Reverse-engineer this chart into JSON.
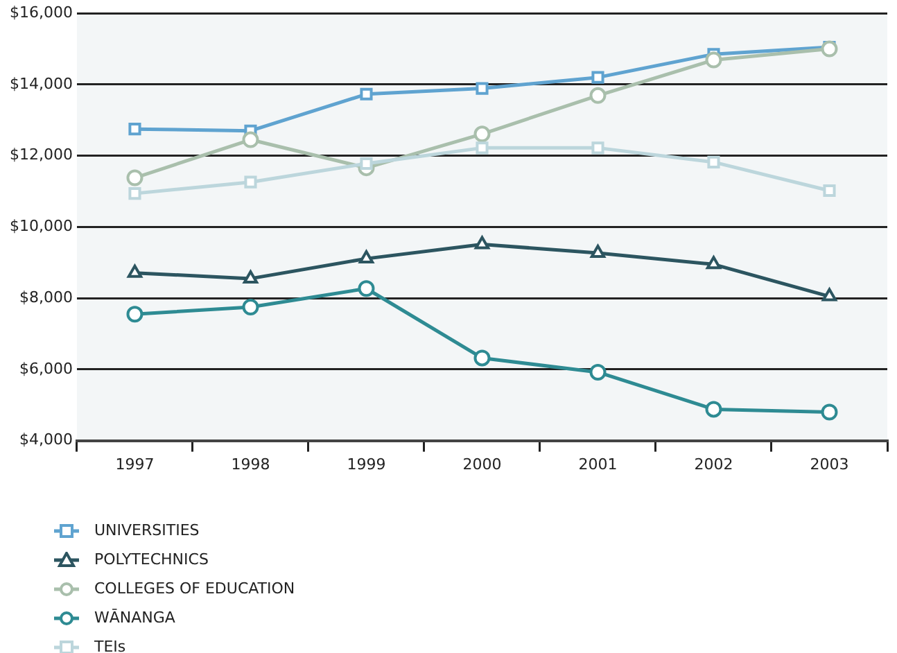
{
  "chart_data": {
    "type": "line",
    "categories": [
      "1997",
      "1998",
      "1999",
      "2000",
      "2001",
      "2002",
      "2003"
    ],
    "series": [
      {
        "name": "UNIVERSITIES",
        "color": "#5fa3d0",
        "marker": "square",
        "values": [
          12750,
          12700,
          13730,
          13890,
          14200,
          14850,
          15050
        ]
      },
      {
        "name": "POLYTECHNICS",
        "color": "#2c5560",
        "marker": "triangle",
        "values": [
          8710,
          8550,
          9110,
          9510,
          9270,
          8950,
          8050
        ]
      },
      {
        "name": "COLLEGES OF EDUCATION",
        "color": "#a9bfac",
        "marker": "circle",
        "values": [
          11380,
          12450,
          11660,
          12610,
          13690,
          14690,
          15000
        ]
      },
      {
        "name": "WĀNANGA",
        "color": "#2e8b93",
        "marker": "circle",
        "values": [
          7550,
          7750,
          8270,
          6320,
          5920,
          4880,
          4800
        ]
      },
      {
        "name": "TEIs",
        "color": "#bcd6dc",
        "marker": "square",
        "values": [
          10940,
          11260,
          11780,
          12220,
          12220,
          11820,
          11020
        ]
      }
    ],
    "ylim": [
      4000,
      16000
    ],
    "yticks": [
      {
        "value": 4000,
        "label": "$4,000"
      },
      {
        "value": 6000,
        "label": "$6,000"
      },
      {
        "value": 8000,
        "label": "$8,000"
      },
      {
        "value": 10000,
        "label": "$10,000"
      },
      {
        "value": 12000,
        "label": "$12,000"
      },
      {
        "value": 14000,
        "label": "$14,000"
      },
      {
        "value": 16000,
        "label": "$16,000"
      }
    ],
    "grid": "y",
    "legend": "bottom left",
    "line_style": "solid"
  }
}
